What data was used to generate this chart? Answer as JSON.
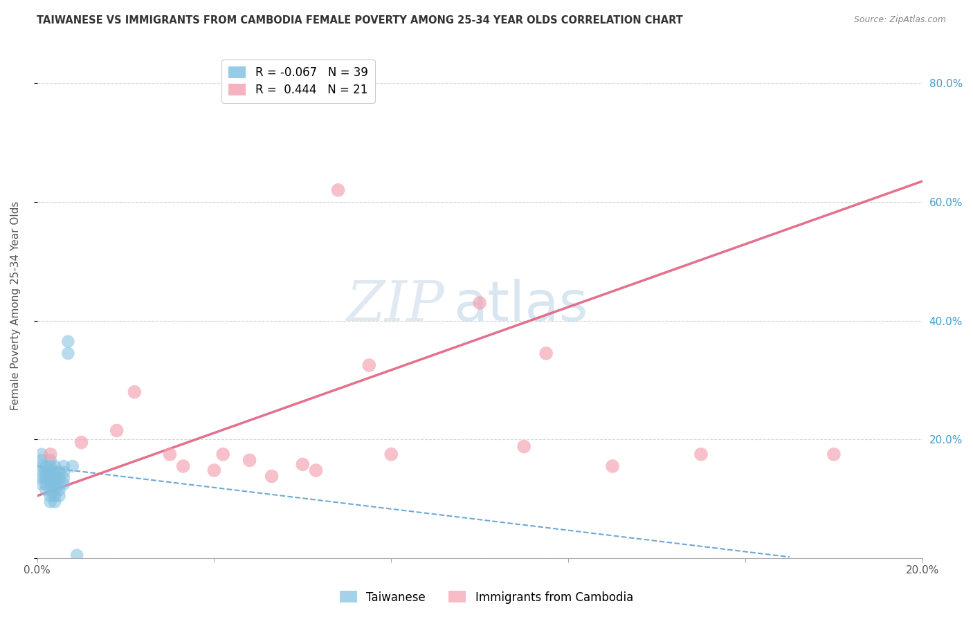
{
  "title": "TAIWANESE VS IMMIGRANTS FROM CAMBODIA FEMALE POVERTY AMONG 25-34 YEAR OLDS CORRELATION CHART",
  "source": "Source: ZipAtlas.com",
  "ylabel": "Female Poverty Among 25-34 Year Olds",
  "xlim": [
    0.0,
    0.2
  ],
  "ylim": [
    0.0,
    0.85
  ],
  "ytick_values": [
    0.0,
    0.2,
    0.4,
    0.6,
    0.8
  ],
  "xtick_values": [
    0.0,
    0.04,
    0.08,
    0.12,
    0.16,
    0.2
  ],
  "legend_R_taiwanese": "-0.067",
  "legend_N_taiwanese": "39",
  "legend_R_cambodia": "0.444",
  "legend_N_cambodia": "21",
  "taiwanese_color": "#7fbfdf",
  "cambodia_color": "#f4a0b0",
  "trendline_taiwanese_color": "#5599cc",
  "trendline_cambodia_color": "#e06080",
  "background_color": "#ffffff",
  "watermark_zip": "ZIP",
  "watermark_atlas": "atlas",
  "taiwanese_x": [
    0.001,
    0.001,
    0.001,
    0.001,
    0.002,
    0.002,
    0.002,
    0.002,
    0.002,
    0.003,
    0.003,
    0.003,
    0.003,
    0.003,
    0.003,
    0.003,
    0.003,
    0.004,
    0.004,
    0.004,
    0.004,
    0.004,
    0.004,
    0.004,
    0.005,
    0.005,
    0.005,
    0.005,
    0.005,
    0.006,
    0.006,
    0.006,
    0.006,
    0.007,
    0.007,
    0.008,
    0.009,
    0.001,
    0.001
  ],
  "taiwanese_y": [
    0.155,
    0.145,
    0.135,
    0.125,
    0.155,
    0.145,
    0.135,
    0.125,
    0.115,
    0.165,
    0.155,
    0.145,
    0.135,
    0.125,
    0.115,
    0.105,
    0.095,
    0.155,
    0.145,
    0.135,
    0.125,
    0.115,
    0.105,
    0.095,
    0.145,
    0.135,
    0.125,
    0.115,
    0.105,
    0.155,
    0.145,
    0.135,
    0.125,
    0.365,
    0.345,
    0.155,
    0.005,
    0.175,
    0.165
  ],
  "cambodia_x": [
    0.003,
    0.01,
    0.018,
    0.022,
    0.03,
    0.033,
    0.04,
    0.042,
    0.048,
    0.053,
    0.06,
    0.063,
    0.068,
    0.075,
    0.08,
    0.1,
    0.11,
    0.115,
    0.13,
    0.15,
    0.18
  ],
  "cambodia_y": [
    0.175,
    0.195,
    0.215,
    0.28,
    0.175,
    0.155,
    0.148,
    0.175,
    0.165,
    0.138,
    0.158,
    0.148,
    0.62,
    0.325,
    0.175,
    0.43,
    0.188,
    0.345,
    0.155,
    0.175,
    0.175
  ],
  "tw_trend_x": [
    0.0,
    0.17
  ],
  "tw_trend_y_start": 0.155,
  "tw_trend_slope": -0.9,
  "cam_trend_x": [
    0.0,
    0.2
  ],
  "cam_trend_y_start": 0.105,
  "cam_trend_slope": 2.65
}
